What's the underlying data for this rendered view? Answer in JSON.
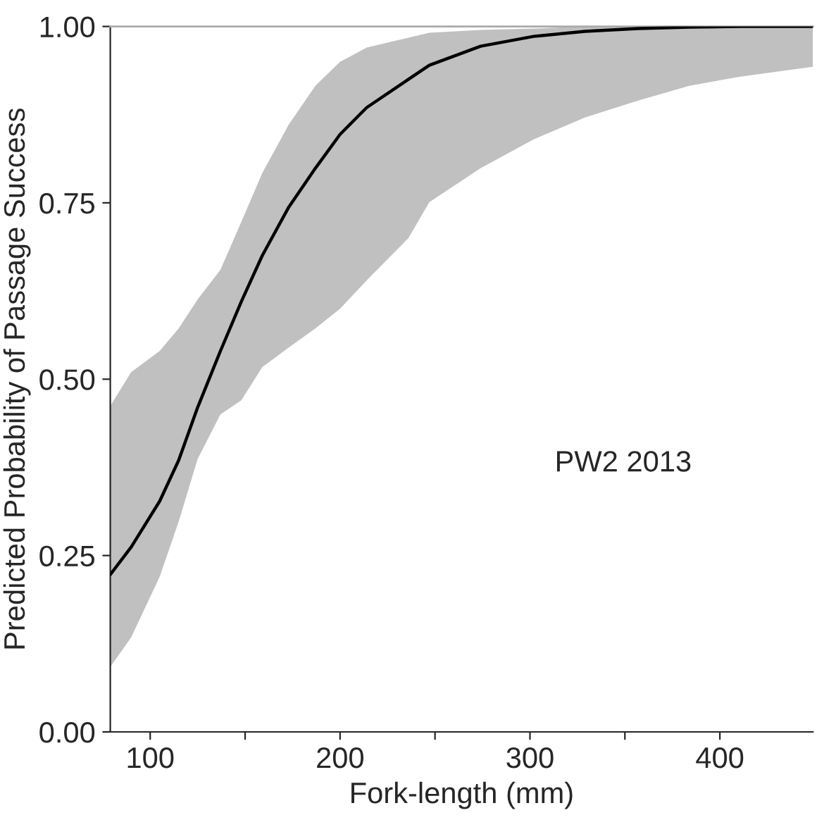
{
  "chart_data": {
    "type": "line",
    "xlabel": "Fork-length (mm)",
    "ylabel": "Predicted Probability of Passage Success",
    "annotations": [
      "PW2 2013"
    ],
    "x": [
      79,
      90,
      105,
      115,
      125,
      137,
      148,
      159,
      173,
      187,
      200,
      214,
      236,
      247,
      274,
      302,
      329,
      357,
      384,
      411,
      449
    ],
    "series": [
      {
        "color": "#000000",
        "values": [
          0.223,
          0.262,
          0.327,
          0.385,
          0.46,
          0.54,
          0.61,
          0.675,
          0.744,
          0.799,
          0.847,
          0.885,
          0.925,
          0.945,
          0.972,
          0.986,
          0.993,
          0.997,
          0.999,
          1.0,
          1.0
        ],
        "upper": [
          0.462,
          0.51,
          0.54,
          0.572,
          0.613,
          0.655,
          0.723,
          0.792,
          0.861,
          0.916,
          0.95,
          0.97,
          0.984,
          0.991,
          0.995,
          0.997,
          1.0,
          1.0,
          1.0,
          1.0,
          1.0
        ],
        "lower": [
          0.092,
          0.134,
          0.22,
          0.298,
          0.387,
          0.45,
          0.47,
          0.517,
          0.545,
          0.572,
          0.6,
          0.64,
          0.7,
          0.751,
          0.799,
          0.84,
          0.871,
          0.895,
          0.916,
          0.929,
          0.943
        ]
      }
    ],
    "xlim": [
      79,
      449
    ],
    "xticks": [
      100,
      {
        "value": 150,
        "label": null
      },
      200,
      {
        "value": 250,
        "label": null
      },
      300,
      {
        "value": 350,
        "label": null
      },
      400
    ],
    "ylim": [
      0,
      1
    ],
    "yticks": [
      {
        "value": 0,
        "label": "0.00"
      },
      {
        "value": 0.25,
        "label": "0.25"
      },
      {
        "value": 0.5,
        "label": "0.50"
      },
      {
        "value": 0.75,
        "label": "0.75"
      },
      {
        "value": 1,
        "label": "1.00"
      }
    ],
    "grid": false,
    "legend": false,
    "marker": "none",
    "line_style": "solid"
  }
}
